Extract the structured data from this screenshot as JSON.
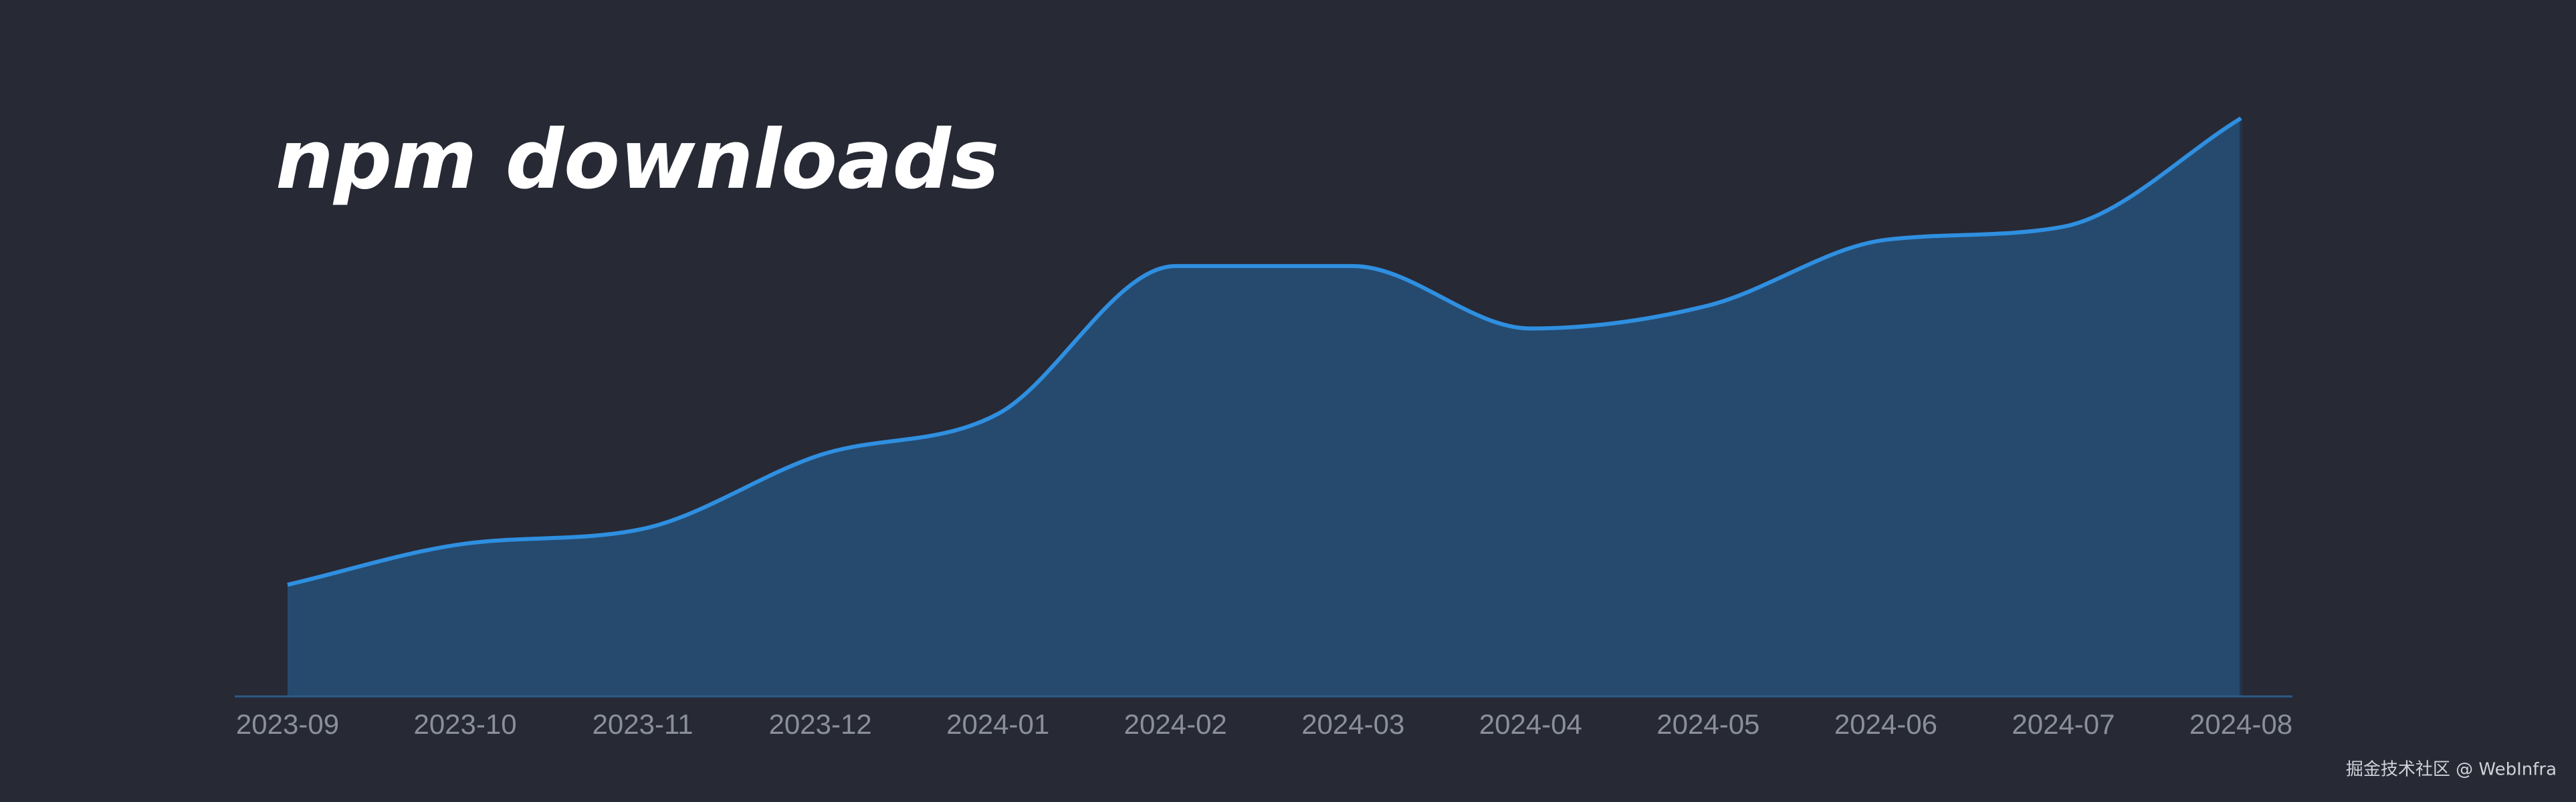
{
  "chart_data": {
    "type": "area",
    "title": "npm downloads",
    "x": [
      "2023-09",
      "2023-10",
      "2023-11",
      "2023-12",
      "2024-01",
      "2024-02",
      "2024-03",
      "2024-04",
      "2024-05",
      "2024-06",
      "2024-07",
      "2024-08"
    ],
    "values": [
      68,
      93,
      102,
      147,
      172,
      262,
      262,
      224,
      238,
      278,
      286,
      352
    ],
    "ylim": [
      0,
      400
    ],
    "color": "#2f8fe0",
    "fill": "#264a6e",
    "watermark": "掘金技术社区 @ WebInfra"
  }
}
